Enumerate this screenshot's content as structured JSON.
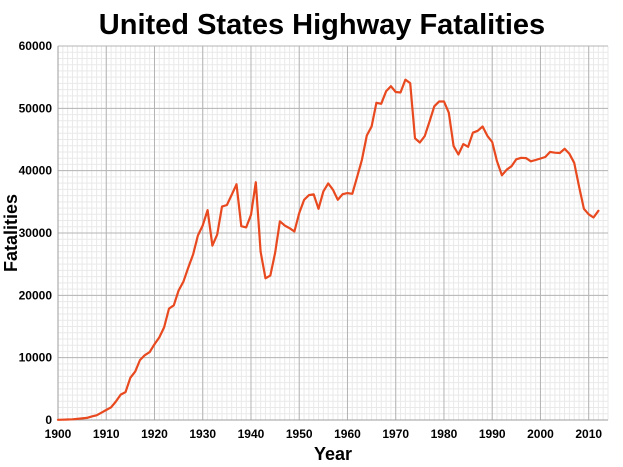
{
  "chart_data": {
    "type": "line",
    "title": "United States Highway Fatalities",
    "xlabel": "Year",
    "ylabel": "Fatalities",
    "xlim": [
      1900,
      2014
    ],
    "ylim": [
      0,
      60000
    ],
    "xticks": [
      1900,
      1910,
      1920,
      1930,
      1940,
      1950,
      1960,
      1970,
      1980,
      1990,
      2000,
      2010
    ],
    "yticks": [
      0,
      10000,
      20000,
      30000,
      40000,
      50000,
      60000
    ],
    "grid": {
      "major": true,
      "minor": true
    },
    "minor_grid": {
      "x_step": 1,
      "y_step": 1000
    },
    "legend": "none",
    "colors": {
      "line": "#e8491f",
      "major_grid": "#b4b4b4",
      "minor_grid": "#e9e9e9",
      "frame": "#9e9e9e",
      "text": "#000000",
      "background": "#ffffff"
    },
    "series": [
      {
        "name": "highway-fatalities",
        "x": [
          1900,
          1901,
          1902,
          1903,
          1904,
          1905,
          1906,
          1907,
          1908,
          1909,
          1910,
          1911,
          1912,
          1913,
          1914,
          1915,
          1916,
          1917,
          1918,
          1919,
          1920,
          1921,
          1922,
          1923,
          1924,
          1925,
          1926,
          1927,
          1928,
          1929,
          1930,
          1931,
          1932,
          1933,
          1934,
          1935,
          1936,
          1937,
          1938,
          1939,
          1940,
          1941,
          1942,
          1943,
          1944,
          1945,
          1946,
          1947,
          1948,
          1949,
          1950,
          1951,
          1952,
          1953,
          1954,
          1955,
          1956,
          1957,
          1958,
          1959,
          1960,
          1961,
          1962,
          1963,
          1964,
          1965,
          1966,
          1967,
          1968,
          1969,
          1970,
          1971,
          1972,
          1973,
          1974,
          1975,
          1976,
          1977,
          1978,
          1979,
          1980,
          1981,
          1982,
          1983,
          1984,
          1985,
          1986,
          1987,
          1988,
          1989,
          1990,
          1991,
          1992,
          1993,
          1994,
          1995,
          1996,
          1997,
          1998,
          1999,
          2000,
          2001,
          2002,
          2003,
          2004,
          2005,
          2006,
          2007,
          2008,
          2009,
          2010,
          2011,
          2012
        ],
        "y": [
          36,
          54,
          79,
          117,
          172,
          252,
          338,
          581,
          751,
          1174,
          1599,
          2043,
          2968,
          4079,
          4468,
          6779,
          7766,
          9630,
          10390,
          10896,
          12155,
          13253,
          14859,
          17870,
          18400,
          20771,
          22194,
          24470,
          26557,
          29592,
          31204,
          33675,
          27979,
          29746,
          34240,
          34494,
          36126,
          37819,
          31083,
          30895,
          32914,
          38142,
          27007,
          22727,
          23165,
          26785,
          31874,
          31193,
          30775,
          30246,
          33186,
          35309,
          36088,
          36190,
          33890,
          36688,
          37965,
          36932,
          35331,
          36223,
          36399,
          36285,
          38980,
          41723,
          45645,
          47089,
          50894,
          50724,
          52725,
          53543,
          52627,
          52542,
          54589,
          54052,
          45196,
          44525,
          45523,
          47878,
          50331,
          51093,
          51091,
          49301,
          43945,
          42589,
          44257,
          43825,
          46087,
          46390,
          47087,
          45582,
          44599,
          41508,
          39250,
          40150,
          40716,
          41817,
          42065,
          42013,
          41501,
          41717,
          41945,
          42196,
          43005,
          42884,
          42836,
          43510,
          42708,
          41259,
          37423,
          33883,
          32999,
          32479,
          33561
        ]
      }
    ]
  }
}
